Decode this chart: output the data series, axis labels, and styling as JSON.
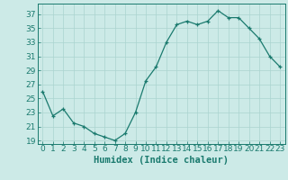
{
  "x": [
    0,
    1,
    2,
    3,
    4,
    5,
    6,
    7,
    8,
    9,
    10,
    11,
    12,
    13,
    14,
    15,
    16,
    17,
    18,
    19,
    20,
    21,
    22,
    23
  ],
  "y": [
    26.0,
    22.5,
    23.5,
    21.5,
    21.0,
    20.0,
    19.5,
    19.0,
    20.0,
    23.0,
    27.5,
    29.5,
    33.0,
    35.5,
    36.0,
    35.5,
    36.0,
    37.5,
    36.5,
    36.5,
    35.0,
    33.5,
    31.0,
    29.5
  ],
  "line_color": "#1a7a6e",
  "marker_color": "#1a7a6e",
  "bg_color": "#cceae7",
  "grid_color": "#aad4d0",
  "xlabel": "Humidex (Indice chaleur)",
  "xlim": [
    -0.5,
    23.5
  ],
  "ylim": [
    18.5,
    38.5
  ],
  "yticks": [
    19,
    21,
    23,
    25,
    27,
    29,
    31,
    33,
    35,
    37
  ],
  "xticks": [
    0,
    1,
    2,
    3,
    4,
    5,
    6,
    7,
    8,
    9,
    10,
    11,
    12,
    13,
    14,
    15,
    16,
    17,
    18,
    19,
    20,
    21,
    22,
    23
  ],
  "tick_fontsize": 6.5,
  "label_fontsize": 7.5
}
